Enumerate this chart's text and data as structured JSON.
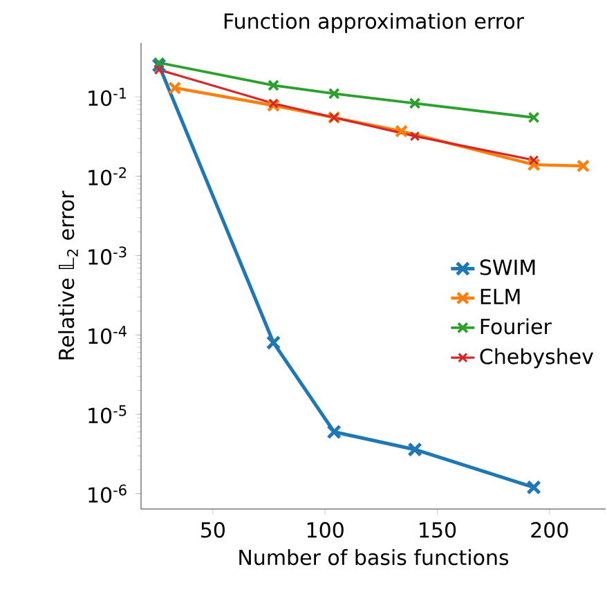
{
  "chart_data": {
    "type": "line",
    "title": "Function approximation error",
    "xlabel": "Number of basis functions",
    "ylabel": "Relative 𝕃$_{2}$ error",
    "log": "y",
    "marker": "cross",
    "line_style": "solid",
    "legend": "center right",
    "grid": false,
    "xlim": [
      18,
      225
    ],
    "xticks": [
      50,
      100,
      150,
      200
    ],
    "ylim": [
      6.4e-07,
      0.48
    ],
    "yticks": [
      {
        "value": 1e-06,
        "label": "10$^{-6}$"
      },
      {
        "value": 1e-05,
        "label": "10$^{-5}$"
      },
      {
        "value": 0.0001,
        "label": "10$^{-4}$"
      },
      {
        "value": 0.001,
        "label": "10$^{-3}$"
      },
      {
        "value": 0.01,
        "label": "10$^{-2}$"
      },
      {
        "value": 0.1,
        "label": "10$^{-1}$"
      }
    ],
    "series": [
      {
        "name": "SWIM",
        "color": "#1f77b4",
        "x": [
          26,
          77,
          104,
          140,
          193
        ],
        "values": [
          0.25,
          8e-05,
          6e-06,
          3.6e-06,
          1.2e-06
        ]
      },
      {
        "name": "ELM",
        "color": "#ff7f0e",
        "x": [
          33,
          77,
          104,
          134,
          193,
          215
        ],
        "values": [
          0.13,
          0.078,
          0.055,
          0.037,
          0.014,
          0.0135
        ]
      },
      {
        "name": "Fourier",
        "color": "#2ca02c",
        "x": [
          26,
          77,
          104,
          140,
          193
        ],
        "values": [
          0.27,
          0.14,
          0.11,
          0.083,
          0.055
        ]
      },
      {
        "name": "Chebyshev",
        "color": "#d62728",
        "x": [
          26,
          77,
          104,
          140,
          193
        ],
        "values": [
          0.22,
          0.083,
          0.055,
          0.032,
          0.016
        ]
      }
    ]
  }
}
